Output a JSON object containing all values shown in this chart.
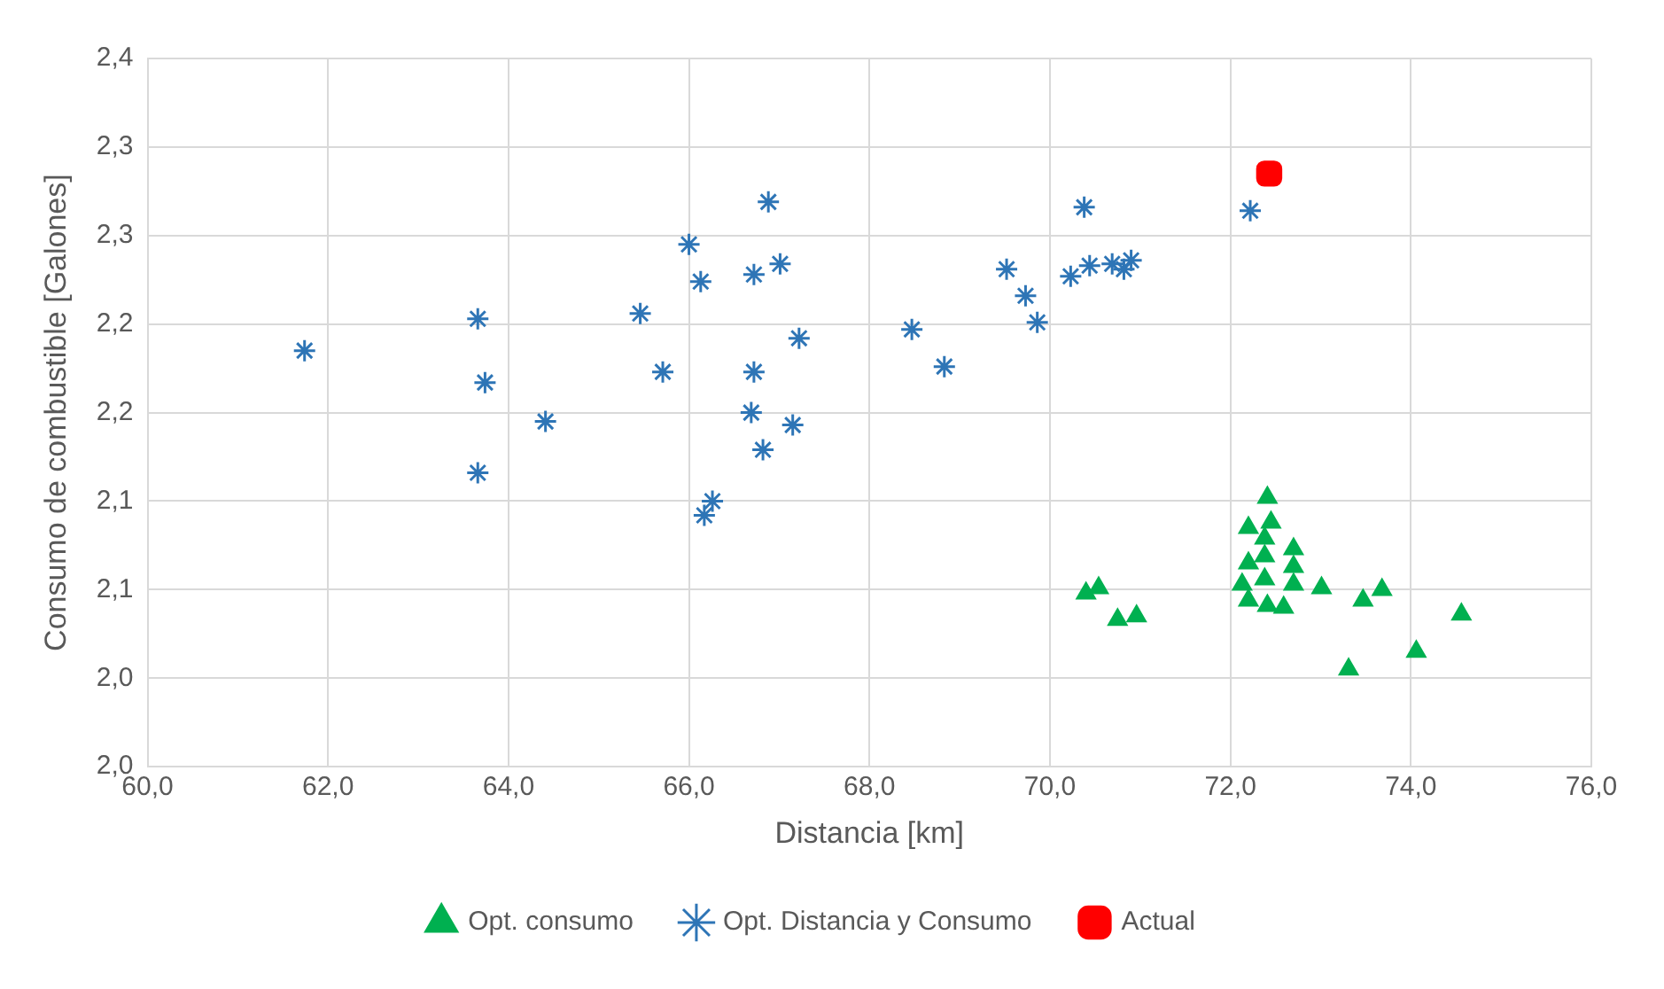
{
  "chart_data": {
    "type": "scatter",
    "xlabel": "Distancia [km]",
    "ylabel": "Consumo de combustible [Galones]",
    "xlim": [
      60,
      76
    ],
    "xticks": [
      {
        "value": 60,
        "label": "60,0"
      },
      {
        "value": 62,
        "label": "62,0"
      },
      {
        "value": 64,
        "label": "64,0"
      },
      {
        "value": 66,
        "label": "66,0"
      },
      {
        "value": 68,
        "label": "68,0"
      },
      {
        "value": 70,
        "label": "70,0"
      },
      {
        "value": 72,
        "label": "72,0"
      },
      {
        "value": 74,
        "label": "74,0"
      },
      {
        "value": 76,
        "label": "76,0"
      }
    ],
    "ylim": [
      1.95,
      2.35
    ],
    "yticks": [
      {
        "value": 1.95,
        "label": "2,0"
      },
      {
        "value": 2.0,
        "label": "2,0"
      },
      {
        "value": 2.05,
        "label": "2,1"
      },
      {
        "value": 2.1,
        "label": "2,1"
      },
      {
        "value": 2.15,
        "label": "2,2"
      },
      {
        "value": 2.2,
        "label": "2,2"
      },
      {
        "value": 2.25,
        "label": "2,3"
      },
      {
        "value": 2.3,
        "label": "2,3"
      },
      {
        "value": 2.35,
        "label": "2,4"
      }
    ],
    "grid": true,
    "legend": "bottom",
    "series": [
      {
        "name": "Opt. consumo",
        "color": "#00b050",
        "marker": "triangle",
        "x": [
          72.41,
          72.2,
          72.45,
          72.38,
          72.7,
          72.2,
          72.38,
          72.7,
          72.13,
          72.38,
          72.7,
          72.2,
          72.41,
          72.59,
          73.01,
          70.4,
          70.54,
          70.75,
          70.96,
          73.47,
          73.68,
          74.56,
          74.06,
          73.31
        ],
        "values": [
          2.102,
          2.085,
          2.088,
          2.079,
          2.073,
          2.065,
          2.069,
          2.063,
          2.053,
          2.056,
          2.053,
          2.044,
          2.041,
          2.04,
          2.051,
          2.048,
          2.051,
          2.033,
          2.035,
          2.044,
          2.05,
          2.036,
          2.015,
          2.005
        ]
      },
      {
        "name": "Opt. Distancia y Consumo",
        "color": "#2e75b6",
        "marker": "cross",
        "x": [
          61.74,
          63.66,
          63.74,
          63.66,
          64.41,
          65.46,
          65.71,
          66.0,
          66.13,
          66.72,
          66.72,
          66.69,
          66.88,
          67.01,
          67.15,
          67.22,
          66.82,
          66.26,
          66.17,
          68.47,
          68.83,
          69.52,
          69.73,
          69.86,
          70.23,
          70.38,
          70.44,
          70.69,
          70.82,
          70.9,
          72.22
        ],
        "values": [
          2.185,
          2.203,
          2.167,
          2.116,
          2.145,
          2.206,
          2.173,
          2.245,
          2.224,
          2.228,
          2.173,
          2.15,
          2.269,
          2.234,
          2.143,
          2.192,
          2.129,
          2.1,
          2.092,
          2.197,
          2.176,
          2.231,
          2.216,
          2.201,
          2.227,
          2.266,
          2.233,
          2.234,
          2.231,
          2.236,
          2.264
        ]
      },
      {
        "name": "Actual",
        "color": "#ff0000",
        "marker": "square",
        "x": [
          72.43
        ],
        "values": [
          2.285
        ]
      }
    ]
  }
}
